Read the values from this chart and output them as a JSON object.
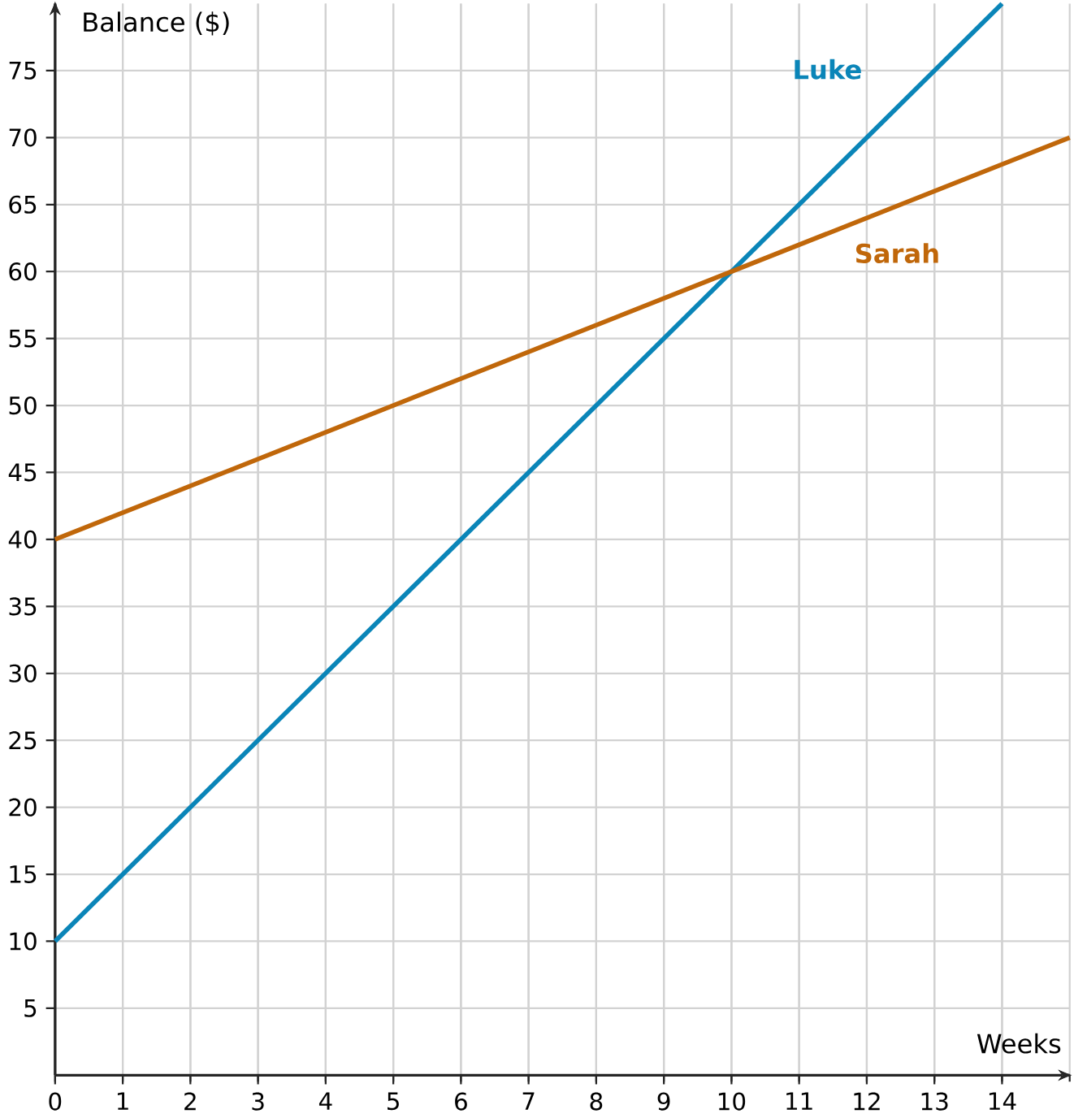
{
  "chart_data": {
    "type": "line",
    "xlabel": "Weeks",
    "ylabel": "Balance ($)",
    "xlim": [
      0,
      15
    ],
    "ylim": [
      0,
      80
    ],
    "xticks": [
      0,
      1,
      2,
      3,
      4,
      5,
      6,
      7,
      8,
      9,
      10,
      11,
      12,
      13,
      14
    ],
    "yticks": [
      5,
      10,
      15,
      20,
      25,
      30,
      35,
      40,
      45,
      50,
      55,
      60,
      65,
      70,
      75
    ],
    "grid": true,
    "legend": false,
    "marker": "none",
    "line_style": "solid",
    "series": [
      {
        "name": "Luke",
        "color": "#0a85b8",
        "x": [
          0,
          14
        ],
        "values": [
          10,
          80
        ]
      },
      {
        "name": "Sarah",
        "color": "#c0670a",
        "x": [
          0,
          15
        ],
        "values": [
          40,
          70
        ]
      }
    ]
  }
}
